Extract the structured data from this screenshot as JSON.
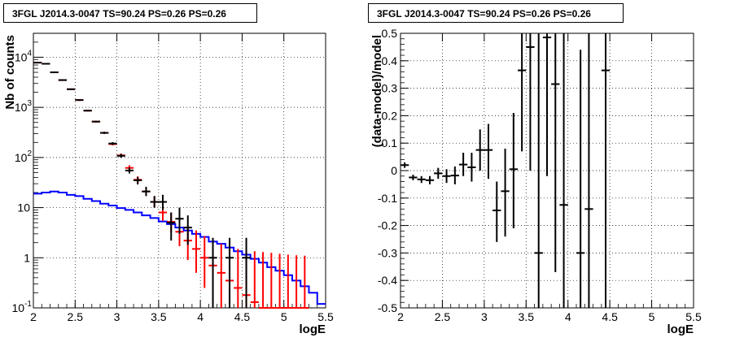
{
  "chart_data": [
    {
      "type": "line",
      "title": "3FGL J2014.3-0047 TS=90.24 PS=0.26 PS=0.26",
      "xlabel": "logE",
      "ylabel": "Nb of counts",
      "xlim": [
        2,
        5.5
      ],
      "ylim": [
        0.1,
        30000
      ],
      "yscale": "log",
      "grid": true,
      "x_ticks": [
        "2",
        "2.5",
        "3",
        "3.5",
        "4",
        "4.5",
        "5",
        "5.5"
      ],
      "y_ticks": [
        {
          "value": 0.1,
          "label": "10",
          "exp": "-1"
        },
        {
          "value": 1,
          "label": "1",
          "exp": ""
        },
        {
          "value": 10,
          "label": "10",
          "exp": ""
        },
        {
          "value": 100,
          "label": "10",
          "exp": "2"
        },
        {
          "value": 1000,
          "label": "10",
          "exp": "3"
        },
        {
          "value": 10000,
          "label": "10",
          "exp": "4"
        }
      ],
      "bin_edges": [
        2.0,
        2.1,
        2.2,
        2.3,
        2.4,
        2.5,
        2.6,
        2.7,
        2.8,
        2.9,
        3.0,
        3.1,
        3.2,
        3.3,
        3.4,
        3.5,
        3.6,
        3.7,
        3.8,
        3.9,
        4.0,
        4.1,
        4.2,
        4.3,
        4.4,
        4.5,
        4.6,
        4.7,
        4.8,
        4.9,
        5.0,
        5.1,
        5.2,
        5.3,
        5.4,
        5.5
      ],
      "series": [
        {
          "color": "#0000ff",
          "style": "step",
          "values": [
            19,
            20,
            21,
            20,
            18,
            17,
            15,
            13.5,
            12,
            11,
            9.8,
            9,
            8,
            7,
            6.2,
            5.3,
            4.7,
            4,
            3.5,
            3,
            2.6,
            2.1,
            1.9,
            1.6,
            1.35,
            1.15,
            0.95,
            0.8,
            0.65,
            0.55,
            0.45,
            0.35,
            0.27,
            0.2,
            0.12
          ]
        },
        {
          "color": "#ff0000",
          "style": "errorbar",
          "points": [
            {
              "x": 2.05,
              "y": 7800,
              "lo": 7600,
              "hi": 8000
            },
            {
              "x": 2.15,
              "y": 7400,
              "lo": 7200,
              "hi": 7600
            },
            {
              "x": 2.25,
              "y": 5000,
              "lo": 4850,
              "hi": 5150
            },
            {
              "x": 2.35,
              "y": 3500,
              "lo": 3400,
              "hi": 3600
            },
            {
              "x": 2.45,
              "y": 2300,
              "lo": 2230,
              "hi": 2370
            },
            {
              "x": 2.55,
              "y": 1400,
              "lo": 1350,
              "hi": 1450
            },
            {
              "x": 2.65,
              "y": 860,
              "lo": 830,
              "hi": 890
            },
            {
              "x": 2.75,
              "y": 520,
              "lo": 500,
              "hi": 540
            },
            {
              "x": 2.85,
              "y": 310,
              "lo": 295,
              "hi": 325
            },
            {
              "x": 2.95,
              "y": 185,
              "lo": 175,
              "hi": 196
            },
            {
              "x": 3.05,
              "y": 110,
              "lo": 100,
              "hi": 120
            },
            {
              "x": 3.15,
              "y": 62,
              "lo": 54,
              "hi": 70
            },
            {
              "x": 3.25,
              "y": 36,
              "lo": 31,
              "hi": 42
            },
            {
              "x": 3.35,
              "y": 21,
              "lo": 17,
              "hi": 26
            },
            {
              "x": 3.45,
              "y": 13,
              "lo": 10,
              "hi": 17
            },
            {
              "x": 3.55,
              "y": 8,
              "lo": 5.5,
              "hi": 11
            },
            {
              "x": 3.65,
              "y": 5.2,
              "lo": 3.2,
              "hi": 8
            },
            {
              "x": 3.75,
              "y": 3.3,
              "lo": 1.7,
              "hi": 5.5
            },
            {
              "x": 3.85,
              "y": 2.2,
              "lo": 0.9,
              "hi": 4.3
            },
            {
              "x": 3.95,
              "y": 1.5,
              "lo": 0.5,
              "hi": 3.5
            },
            {
              "x": 4.05,
              "y": 1.0,
              "lo": 0.25,
              "hi": 2.7
            },
            {
              "x": 4.15,
              "y": 0.7,
              "lo": 0.12,
              "hi": 2.2
            },
            {
              "x": 4.25,
              "y": 0.5,
              "lo": 0.1,
              "hi": 1.9
            },
            {
              "x": 4.35,
              "y": 0.35,
              "lo": 0.1,
              "hi": 1.7
            },
            {
              "x": 4.45,
              "y": 0.25,
              "lo": 0.1,
              "hi": 1.5
            },
            {
              "x": 4.55,
              "y": 0.18,
              "lo": 0.1,
              "hi": 1.4
            },
            {
              "x": 4.65,
              "y": 0.13,
              "lo": 0.1,
              "hi": 1.35
            },
            {
              "x": 4.75,
              "y": 0.1,
              "lo": 0.1,
              "hi": 1.3
            },
            {
              "x": 4.85,
              "y": 0.1,
              "lo": 0.1,
              "hi": 1.25
            },
            {
              "x": 4.95,
              "y": 0.1,
              "lo": 0.1,
              "hi": 1.2
            },
            {
              "x": 5.05,
              "y": 0.1,
              "lo": 0.1,
              "hi": 1.15
            },
            {
              "x": 5.15,
              "y": 0.1,
              "lo": 0.1,
              "hi": 1.12
            },
            {
              "x": 5.25,
              "y": 0.1,
              "lo": 0.1,
              "hi": 1.1
            }
          ]
        },
        {
          "color": "#000000",
          "style": "errorbar",
          "points": [
            {
              "x": 2.05,
              "y": 7800,
              "lo": 7600,
              "hi": 8000
            },
            {
              "x": 2.15,
              "y": 7400,
              "lo": 7200,
              "hi": 7600
            },
            {
              "x": 2.25,
              "y": 5000,
              "lo": 4850,
              "hi": 5150
            },
            {
              "x": 2.35,
              "y": 3500,
              "lo": 3400,
              "hi": 3600
            },
            {
              "x": 2.45,
              "y": 2300,
              "lo": 2230,
              "hi": 2370
            },
            {
              "x": 2.55,
              "y": 1400,
              "lo": 1350,
              "hi": 1450
            },
            {
              "x": 2.65,
              "y": 860,
              "lo": 830,
              "hi": 890
            },
            {
              "x": 2.75,
              "y": 520,
              "lo": 500,
              "hi": 540
            },
            {
              "x": 2.85,
              "y": 310,
              "lo": 295,
              "hi": 325
            },
            {
              "x": 2.95,
              "y": 190,
              "lo": 178,
              "hi": 202
            },
            {
              "x": 3.05,
              "y": 108,
              "lo": 99,
              "hi": 118
            },
            {
              "x": 3.15,
              "y": 55,
              "lo": 48,
              "hi": 63
            },
            {
              "x": 3.25,
              "y": 35,
              "lo": 29,
              "hi": 41
            },
            {
              "x": 3.35,
              "y": 21,
              "lo": 17,
              "hi": 26
            },
            {
              "x": 3.45,
              "y": 13,
              "lo": 10,
              "hi": 17
            },
            {
              "x": 3.55,
              "y": 13,
              "lo": 9,
              "hi": 18
            },
            {
              "x": 3.65,
              "y": 5,
              "lo": 2.2,
              "hi": 8
            },
            {
              "x": 3.75,
              "y": 6,
              "lo": 3,
              "hi": 10
            },
            {
              "x": 3.85,
              "y": 4,
              "lo": 1.8,
              "hi": 7
            },
            {
              "x": 4.15,
              "y": 1,
              "lo": 0.1,
              "hi": 2.5
            },
            {
              "x": 4.35,
              "y": 1,
              "lo": 0.1,
              "hi": 2.5
            },
            {
              "x": 4.55,
              "y": 1,
              "lo": 0.1,
              "hi": 2.5
            }
          ]
        }
      ]
    },
    {
      "type": "scatter",
      "title": "3FGL J2014.3-0047 TS=90.24 PS=0.26 PS=0.26",
      "xlabel": "logE",
      "ylabel": "(data-model)/model",
      "xlim": [
        2,
        5.5
      ],
      "ylim": [
        -0.5,
        0.5
      ],
      "grid": true,
      "x_ticks": [
        "2",
        "2.5",
        "3",
        "3.5",
        "4",
        "4.5",
        "5",
        "5.5"
      ],
      "y_ticks": [
        "-0.5",
        "-0.4",
        "-0.3",
        "-0.2",
        "-0.1",
        "0",
        "0.1",
        "0.2",
        "0.3",
        "0.4",
        "0.5"
      ],
      "series": [
        {
          "color": "#000000",
          "style": "errorbar",
          "points": [
            {
              "x": 2.05,
              "y": 0.02,
              "lo": 0.01,
              "hi": 0.03
            },
            {
              "x": 2.15,
              "y": -0.025,
              "lo": -0.035,
              "hi": -0.015
            },
            {
              "x": 2.25,
              "y": -0.032,
              "lo": -0.045,
              "hi": -0.02
            },
            {
              "x": 2.35,
              "y": -0.035,
              "lo": -0.05,
              "hi": -0.02
            },
            {
              "x": 2.45,
              "y": -0.01,
              "lo": -0.03,
              "hi": 0.01
            },
            {
              "x": 2.55,
              "y": -0.02,
              "lo": -0.045,
              "hi": 0.005
            },
            {
              "x": 2.65,
              "y": -0.018,
              "lo": -0.05,
              "hi": 0.015
            },
            {
              "x": 2.75,
              "y": 0.022,
              "lo": -0.02,
              "hi": 0.065
            },
            {
              "x": 2.85,
              "y": 0.012,
              "lo": -0.04,
              "hi": 0.065
            },
            {
              "x": 2.95,
              "y": 0.075,
              "lo": 0.0,
              "hi": 0.15
            },
            {
              "x": 3.05,
              "y": 0.075,
              "lo": -0.03,
              "hi": 0.17
            },
            {
              "x": 3.15,
              "y": -0.145,
              "lo": -0.26,
              "hi": -0.04
            },
            {
              "x": 3.25,
              "y": -0.075,
              "lo": -0.24,
              "hi": 0.08
            },
            {
              "x": 3.35,
              "y": 0.005,
              "lo": -0.21,
              "hi": 0.21
            },
            {
              "x": 3.45,
              "y": 0.365,
              "lo": 0.07,
              "hi": 0.5
            },
            {
              "x": 3.55,
              "y": 0.45,
              "lo": 0.0,
              "hi": 0.5
            },
            {
              "x": 3.65,
              "y": -0.3,
              "lo": -0.5,
              "hi": 0.5
            },
            {
              "x": 3.75,
              "y": 0.485,
              "lo": -0.02,
              "hi": 0.5
            },
            {
              "x": 3.85,
              "y": 0.315,
              "lo": -0.37,
              "hi": 0.5
            },
            {
              "x": 3.95,
              "y": -0.125,
              "lo": -0.5,
              "hi": 0.5
            },
            {
              "x": 4.15,
              "y": -0.3,
              "lo": -0.5,
              "hi": 0.44
            },
            {
              "x": 4.25,
              "y": -0.14,
              "lo": -0.5,
              "hi": 0.5
            },
            {
              "x": 4.45,
              "y": 0.365,
              "lo": -0.5,
              "hi": 0.5
            }
          ]
        }
      ]
    }
  ]
}
